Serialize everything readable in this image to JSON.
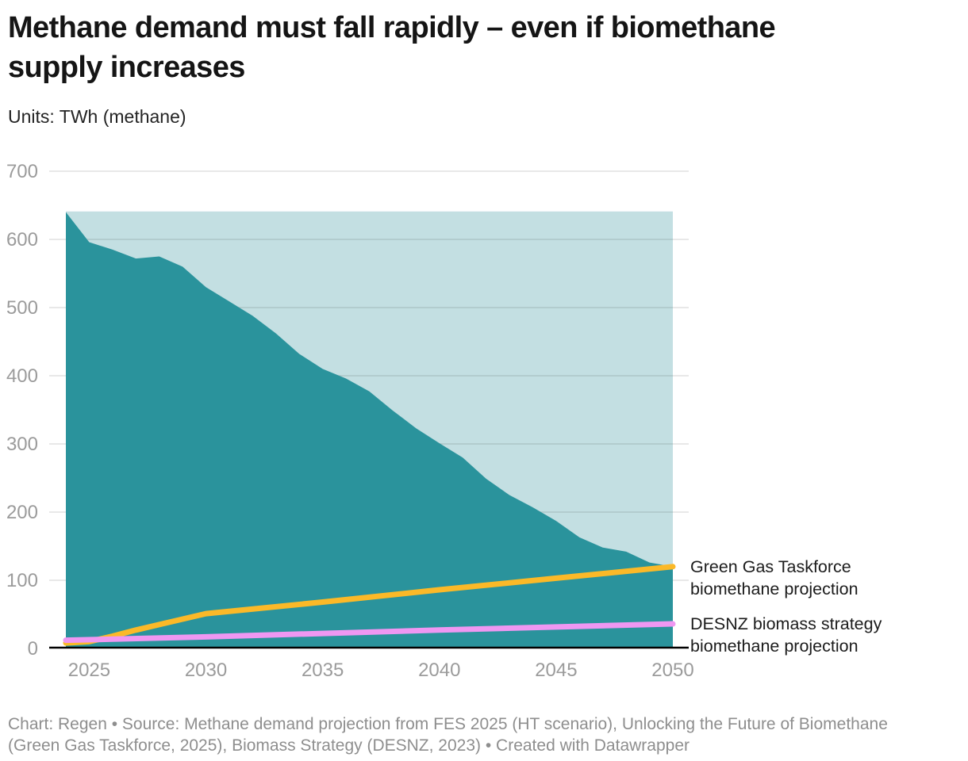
{
  "header": {
    "title_lines": [
      "Methane demand must fall rapidly – even if biomethane",
      "supply increases"
    ],
    "subtitle": "Units: TWh (methane)"
  },
  "annotations": {
    "ggt": {
      "lines": [
        "Green Gas Taskforce",
        "biomethane projection"
      ]
    },
    "desnz": {
      "lines": [
        "DESNZ biomass strategy",
        "biomethane projection"
      ]
    }
  },
  "footer": {
    "lines": [
      "Chart: Regen • Source: Methane demand projection from FES 2025 (HT scenario), Unlocking the Future of Biomethane",
      "(Green Gas Taskforce, 2025), Biomass Strategy (DESNZ, 2023) • Created with Datawrapper"
    ]
  },
  "chart_data": {
    "type": "area",
    "title": "Methane demand must fall rapidly – even if biomethane supply increases",
    "ylabel": "TWh (methane)",
    "xlabel": "",
    "grid": true,
    "x_range": [
      2024,
      2050
    ],
    "ylim": [
      0,
      700
    ],
    "xaxis": {
      "ticks": [
        2025,
        2030,
        2035,
        2040,
        2045,
        2050
      ]
    },
    "yaxis": {
      "ticks": [
        0,
        100,
        200,
        300,
        400,
        500,
        600,
        700
      ]
    },
    "band": {
      "name": "2024 demand level band",
      "top_value": 641,
      "color": "#c3dfe2"
    },
    "series": [
      {
        "name": "Methane demand projection (FES 2025 HT scenario)",
        "type": "area",
        "color": "#2a939c",
        "x": [
          2024,
          2025,
          2026,
          2027,
          2028,
          2029,
          2030,
          2031,
          2032,
          2033,
          2034,
          2035,
          2036,
          2037,
          2038,
          2039,
          2040,
          2041,
          2042,
          2043,
          2044,
          2045,
          2046,
          2047,
          2048,
          2049,
          2050
        ],
        "values": [
          640,
          596,
          585,
          572,
          575,
          560,
          530,
          509,
          488,
          462,
          432,
          410,
          396,
          377,
          349,
          323,
          301,
          280,
          249,
          225,
          207,
          187,
          163,
          148,
          142,
          126,
          120
        ]
      },
      {
        "name": "Green Gas Taskforce biomethane projection",
        "type": "line",
        "color": "#fbb928",
        "x": [
          2024,
          2025,
          2026,
          2027,
          2028,
          2029,
          2030,
          2035,
          2040,
          2045,
          2050
        ],
        "values": [
          8,
          10,
          18,
          27,
          35,
          43,
          51,
          68,
          86,
          103,
          120
        ]
      },
      {
        "name": "DESNZ biomass strategy biomethane projection",
        "type": "line",
        "color": "#ef97f2",
        "x": [
          2024,
          2030,
          2040,
          2050
        ],
        "values": [
          12,
          17,
          27,
          36
        ]
      }
    ],
    "colors": {
      "tick_label": "#9b9b9b",
      "axis_line": "#000000",
      "gridline": "rgba(20,20,20,0.13)"
    }
  }
}
